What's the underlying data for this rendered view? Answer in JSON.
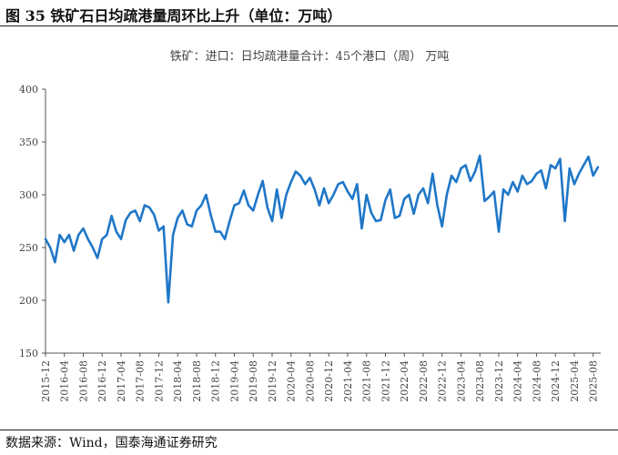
{
  "figure_title": "图 35  铁矿石日均疏港量周环比上升（单位：万吨）",
  "source": "数据来源：Wind，国泰海通证券研究",
  "chart_data": {
    "type": "line",
    "title": "铁矿：进口：日均疏港量合计：45个港口（周） 万吨",
    "xlabel": "",
    "ylabel": "",
    "ylim": [
      150,
      400
    ],
    "yticks": [
      150,
      200,
      250,
      300,
      350,
      400
    ],
    "x_tick_labels": [
      "2015-12",
      "2016-04",
      "2016-08",
      "2016-12",
      "2017-04",
      "2017-08",
      "2017-12",
      "2018-04",
      "2018-08",
      "2018-12",
      "2019-04",
      "2019-08",
      "2019-12",
      "2020-04",
      "2020-08",
      "2020-12",
      "2021-04",
      "2021-08",
      "2021-12",
      "2022-04",
      "2022-08",
      "2022-12",
      "2023-04",
      "2023-08",
      "2023-12",
      "2024-04",
      "2024-08",
      "2024-12",
      "2025-04",
      "2025-08"
    ],
    "grid": false,
    "legend": "none",
    "line_color": "#1f77c8",
    "series": [
      {
        "x": [
          "2015-12",
          "2016-01",
          "2016-02",
          "2016-03",
          "2016-04",
          "2016-05",
          "2016-06",
          "2016-07",
          "2016-08",
          "2016-09",
          "2016-10",
          "2016-11",
          "2016-12",
          "2017-01",
          "2017-02",
          "2017-03",
          "2017-04",
          "2017-05",
          "2017-06",
          "2017-07",
          "2017-08",
          "2017-09",
          "2017-10",
          "2017-11",
          "2017-12",
          "2018-01",
          "2018-02",
          "2018-03",
          "2018-04",
          "2018-05",
          "2018-06",
          "2018-07",
          "2018-08",
          "2018-09",
          "2018-10",
          "2018-11",
          "2018-12",
          "2019-01",
          "2019-02",
          "2019-03",
          "2019-04",
          "2019-05",
          "2019-06",
          "2019-07",
          "2019-08",
          "2019-09",
          "2019-10",
          "2019-11",
          "2019-12",
          "2020-01",
          "2020-02",
          "2020-03",
          "2020-04",
          "2020-05",
          "2020-06",
          "2020-07",
          "2020-08",
          "2020-09",
          "2020-10",
          "2020-11",
          "2020-12",
          "2021-01",
          "2021-02",
          "2021-03",
          "2021-04",
          "2021-05",
          "2021-06",
          "2021-07",
          "2021-08",
          "2021-09",
          "2021-10",
          "2021-11",
          "2021-12",
          "2022-01",
          "2022-02",
          "2022-03",
          "2022-04",
          "2022-05",
          "2022-06",
          "2022-07",
          "2022-08",
          "2022-09",
          "2022-10",
          "2022-11",
          "2022-12",
          "2023-01",
          "2023-02",
          "2023-03",
          "2023-04",
          "2023-05",
          "2023-06",
          "2023-07",
          "2023-08",
          "2023-09",
          "2023-10",
          "2023-11",
          "2023-12",
          "2024-01",
          "2024-02",
          "2024-03",
          "2024-04",
          "2024-05",
          "2024-06",
          "2024-07",
          "2024-08",
          "2024-09",
          "2024-10",
          "2024-11",
          "2024-12",
          "2025-01",
          "2025-02",
          "2025-03",
          "2025-04",
          "2025-05",
          "2025-06",
          "2025-07",
          "2025-08",
          "2025-09"
        ],
        "values": [
          258,
          250,
          236,
          262,
          255,
          262,
          247,
          262,
          268,
          258,
          250,
          240,
          258,
          262,
          280,
          265,
          258,
          276,
          283,
          285,
          275,
          290,
          288,
          281,
          266,
          270,
          198,
          262,
          278,
          285,
          272,
          270,
          285,
          290,
          300,
          281,
          265,
          265,
          258,
          275,
          290,
          292,
          304,
          290,
          285,
          300,
          313,
          288,
          275,
          305,
          278,
          300,
          312,
          322,
          318,
          310,
          316,
          305,
          290,
          306,
          292,
          300,
          310,
          312,
          303,
          296,
          310,
          268,
          300,
          283,
          275,
          276,
          295,
          305,
          278,
          280,
          296,
          300,
          282,
          300,
          306,
          292,
          320,
          290,
          270,
          300,
          318,
          312,
          325,
          328,
          313,
          322,
          337,
          294,
          298,
          303,
          265,
          305,
          300,
          312,
          303,
          318,
          310,
          313,
          320,
          323,
          306,
          328,
          325,
          334,
          275,
          325,
          310,
          320,
          328,
          336,
          318,
          326
        ]
      }
    ]
  }
}
